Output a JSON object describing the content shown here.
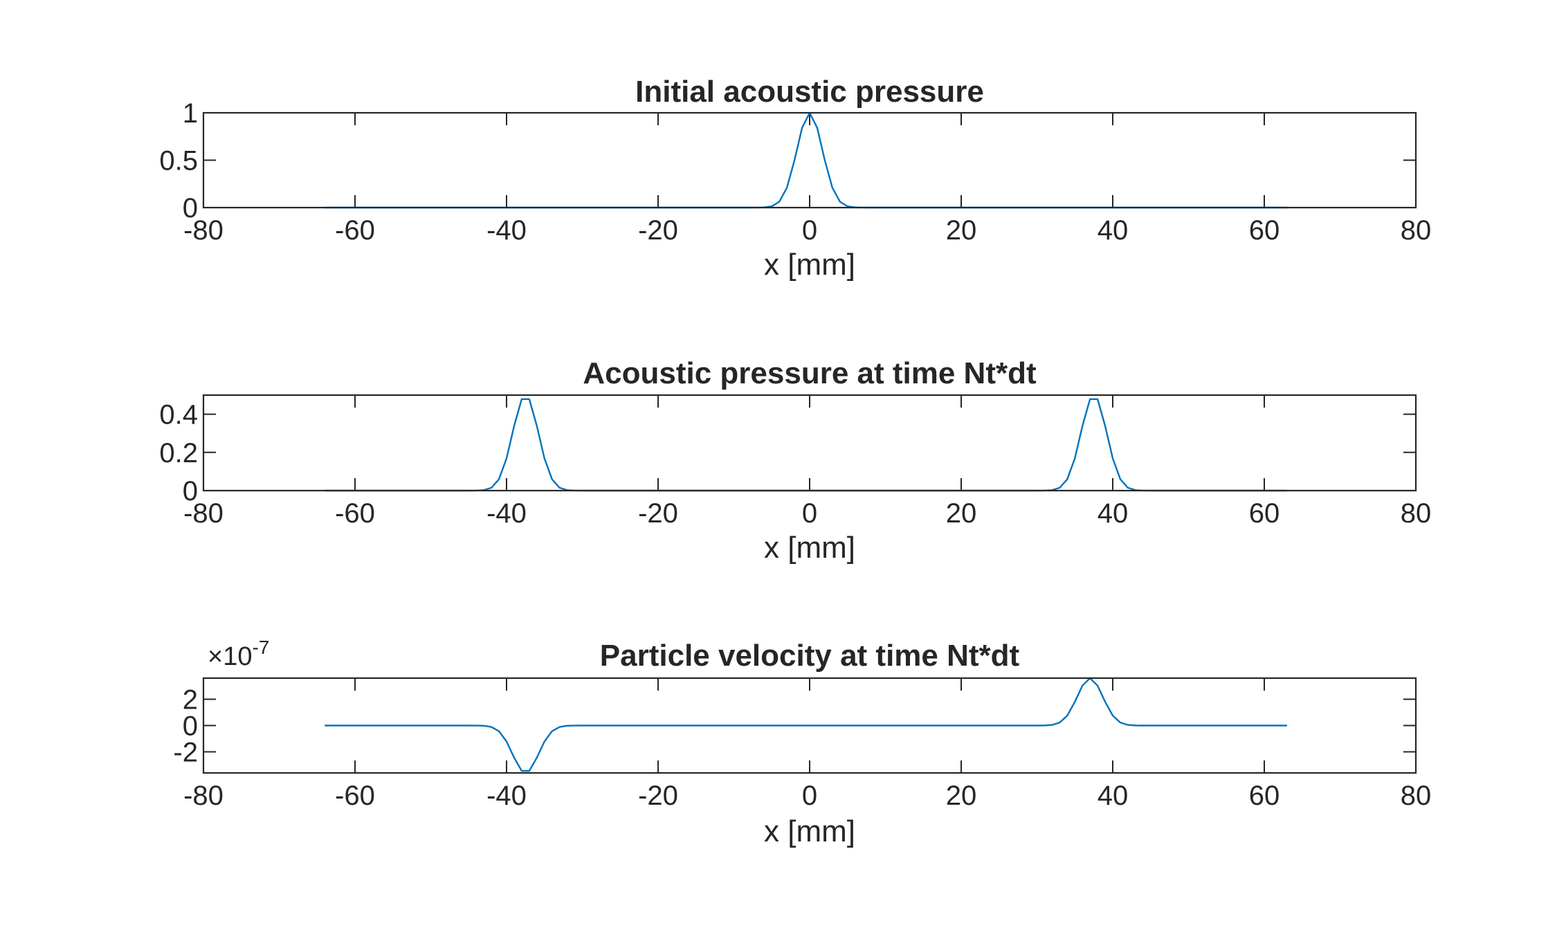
{
  "chart_data": [
    {
      "type": "line",
      "title": "Initial acoustic pressure",
      "xlabel": "x [mm]",
      "ylabel": "",
      "xlim": [
        -80,
        80
      ],
      "ylim": [
        0,
        1
      ],
      "xticks": [
        -80,
        -60,
        -40,
        -20,
        0,
        20,
        40,
        60,
        80
      ],
      "yticks": [
        0,
        0.5,
        1
      ],
      "xtick_labels": [
        "-80",
        "-60",
        "-40",
        "-20",
        "0",
        "20",
        "40",
        "60",
        "80"
      ],
      "ytick_labels": [
        "0",
        "0.5",
        "1"
      ],
      "exponent_label": "",
      "grid": false,
      "line_color": "#0072BD",
      "series": [
        {
          "kind": "gaussian",
          "x_range": [
            -64,
            63
          ],
          "step": 1,
          "pulses": [
            {
              "center": 0,
              "amp": 1.0,
              "width": 2.4
            }
          ]
        }
      ]
    },
    {
      "type": "line",
      "title": "Acoustic pressure at time Nt*dt",
      "xlabel": "x [mm]",
      "ylabel": "",
      "xlim": [
        -80,
        80
      ],
      "ylim": [
        0,
        0.5
      ],
      "xticks": [
        -80,
        -60,
        -40,
        -20,
        0,
        20,
        40,
        60,
        80
      ],
      "yticks": [
        0,
        0.2,
        0.4
      ],
      "xtick_labels": [
        "-80",
        "-60",
        "-40",
        "-20",
        "0",
        "20",
        "40",
        "60",
        "80"
      ],
      "ytick_labels": [
        "0",
        "0.2",
        "0.4"
      ],
      "exponent_label": "",
      "grid": false,
      "line_color": "#0072BD",
      "series": [
        {
          "kind": "gaussian",
          "x_range": [
            -64,
            63
          ],
          "step": 1,
          "pulses": [
            {
              "center": -37.5,
              "amp": 0.5,
              "width": 2.4
            },
            {
              "center": 37.5,
              "amp": 0.5,
              "width": 2.4
            }
          ]
        }
      ]
    },
    {
      "type": "line",
      "title": "Particle velocity at time Nt*dt",
      "xlabel": "x [mm]",
      "ylabel": "",
      "xlim": [
        -80,
        80
      ],
      "ylim": [
        -3.6e-07,
        3.6e-07
      ],
      "xticks": [
        -80,
        -60,
        -40,
        -20,
        0,
        20,
        40,
        60,
        80
      ],
      "yticks": [
        -2e-07,
        0,
        2e-07
      ],
      "xtick_labels": [
        "-80",
        "-60",
        "-40",
        "-20",
        "0",
        "20",
        "40",
        "60",
        "80"
      ],
      "ytick_labels": [
        "-2",
        "0",
        "2"
      ],
      "exponent_label": "×10",
      "exponent_power": "-7",
      "grid": false,
      "line_color": "#0072BD",
      "series": [
        {
          "kind": "gaussian",
          "x_range": [
            -64,
            63
          ],
          "step": 1,
          "pulses": [
            {
              "center": -37.5,
              "amp": -3.6e-07,
              "width": 2.4
            },
            {
              "center": 37.0,
              "amp": 3.6e-07,
              "width": 2.4
            }
          ]
        }
      ]
    }
  ]
}
